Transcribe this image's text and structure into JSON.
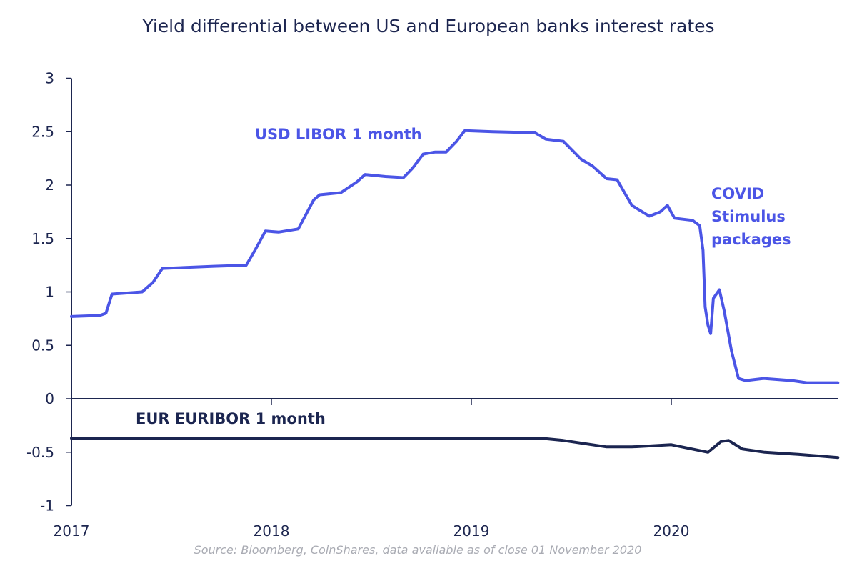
{
  "chart_data": {
    "type": "line",
    "title": "Yield differential between US and European banks interest rates",
    "source": "Source: Bloomberg, CoinShares, data available as of close 01 November 2020",
    "xlabel": "",
    "ylabel": "",
    "xlim": [
      "2017-01-01",
      "2020-11-01"
    ],
    "ylim": [
      -1,
      3
    ],
    "x_ticks": [
      "2017",
      "2018",
      "2019",
      "2020"
    ],
    "y_ticks": [
      "3",
      "2.5",
      "2",
      "1.5",
      "1",
      "0.5",
      "0",
      "-0.5",
      "-1"
    ],
    "grid": false,
    "legend": "none (series labelled directly on chart)",
    "annotations": [
      "COVID",
      "Stimulus",
      "packages"
    ],
    "colors": {
      "usd": "#4b55e6",
      "eur": "#1b2550",
      "axis": "#1d2650",
      "source": "#a9abb3"
    },
    "series": [
      {
        "name": "USD LIBOR 1 month",
        "points": [
          [
            "2017-01-01",
            0.77
          ],
          [
            "2017-02-22",
            0.78
          ],
          [
            "2017-03-05",
            0.8
          ],
          [
            "2017-03-16",
            0.98
          ],
          [
            "2017-05-10",
            1.0
          ],
          [
            "2017-05-30",
            1.09
          ],
          [
            "2017-06-16",
            1.22
          ],
          [
            "2017-09-18",
            1.24
          ],
          [
            "2017-11-16",
            1.25
          ],
          [
            "2017-12-03",
            1.4
          ],
          [
            "2017-12-21",
            1.57
          ],
          [
            "2018-01-14",
            1.56
          ],
          [
            "2018-02-19",
            1.59
          ],
          [
            "2018-03-19",
            1.86
          ],
          [
            "2018-03-30",
            1.91
          ],
          [
            "2018-05-08",
            1.93
          ],
          [
            "2018-06-06",
            2.03
          ],
          [
            "2018-06-21",
            2.1
          ],
          [
            "2018-07-28",
            2.08
          ],
          [
            "2018-08-30",
            2.07
          ],
          [
            "2018-09-16",
            2.16
          ],
          [
            "2018-10-05",
            2.29
          ],
          [
            "2018-10-27",
            2.31
          ],
          [
            "2018-11-16",
            2.31
          ],
          [
            "2018-12-05",
            2.41
          ],
          [
            "2018-12-20",
            2.51
          ],
          [
            "2019-02-09",
            2.5
          ],
          [
            "2019-04-27",
            2.49
          ],
          [
            "2019-05-17",
            2.43
          ],
          [
            "2019-06-18",
            2.41
          ],
          [
            "2019-07-21",
            2.24
          ],
          [
            "2019-08-10",
            2.18
          ],
          [
            "2019-09-05",
            2.06
          ],
          [
            "2019-09-24",
            2.05
          ],
          [
            "2019-10-21",
            1.81
          ],
          [
            "2019-11-22",
            1.71
          ],
          [
            "2019-12-12",
            1.75
          ],
          [
            "2019-12-25",
            1.81
          ],
          [
            "2020-01-07",
            1.69
          ],
          [
            "2020-02-09",
            1.67
          ],
          [
            "2020-02-22",
            1.62
          ],
          [
            "2020-02-28",
            1.39
          ],
          [
            "2020-03-03",
            0.86
          ],
          [
            "2020-03-08",
            0.69
          ],
          [
            "2020-03-13",
            0.61
          ],
          [
            "2020-03-18",
            0.94
          ],
          [
            "2020-03-29",
            1.02
          ],
          [
            "2020-04-07",
            0.82
          ],
          [
            "2020-04-20",
            0.45
          ],
          [
            "2020-05-03",
            0.19
          ],
          [
            "2020-05-16",
            0.17
          ],
          [
            "2020-06-18",
            0.19
          ],
          [
            "2020-08-09",
            0.17
          ],
          [
            "2020-09-05",
            0.15
          ],
          [
            "2020-11-01",
            0.15
          ]
        ]
      },
      {
        "name": "EUR EURIBOR 1 month",
        "points": [
          [
            "2017-01-01",
            -0.37
          ],
          [
            "2018-01-01",
            -0.37
          ],
          [
            "2019-01-01",
            -0.37
          ],
          [
            "2019-05-10",
            -0.37
          ],
          [
            "2019-06-18",
            -0.39
          ],
          [
            "2019-09-05",
            -0.45
          ],
          [
            "2019-10-21",
            -0.45
          ],
          [
            "2020-01-01",
            -0.43
          ],
          [
            "2020-03-08",
            -0.5
          ],
          [
            "2020-04-01",
            -0.4
          ],
          [
            "2020-04-15",
            -0.39
          ],
          [
            "2020-05-10",
            -0.47
          ],
          [
            "2020-06-20",
            -0.5
          ],
          [
            "2020-08-20",
            -0.52
          ],
          [
            "2020-11-01",
            -0.55
          ]
        ]
      }
    ]
  }
}
